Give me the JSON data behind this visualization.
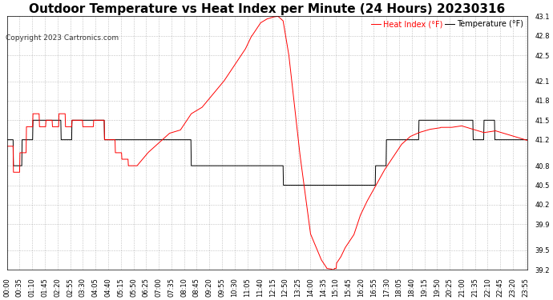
{
  "title": "Outdoor Temperature vs Heat Index per Minute (24 Hours) 20230316",
  "copyright": "Copyright 2023 Cartronics.com",
  "legend_heat": "Heat Index (°F)",
  "legend_temp": "Temperature (°F)",
  "heat_index_color": "#ff0000",
  "temp_color": "#000000",
  "background_color": "#ffffff",
  "grid_color": "#999999",
  "ylim": [
    39.2,
    43.1
  ],
  "yticks": [
    43.1,
    42.8,
    42.5,
    42.1,
    41.8,
    41.5,
    41.2,
    40.8,
    40.5,
    40.2,
    39.9,
    39.5,
    39.2
  ],
  "title_fontsize": 11,
  "tick_fontsize": 6,
  "copyright_fontsize": 6.5,
  "legend_fontsize": 7
}
